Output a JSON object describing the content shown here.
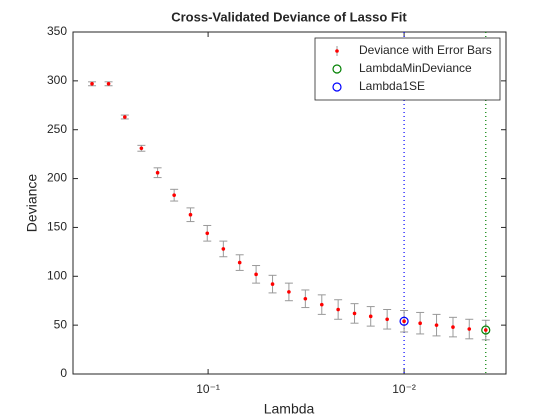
{
  "chart_data": {
    "type": "errorbar",
    "title": "Cross-Validated Deviance of Lasso Fit",
    "xlabel": "Lambda",
    "ylabel": "Deviance",
    "xscale": "log",
    "xlim": [
      0.489,
      0.00302
    ],
    "xticks": [
      {
        "value": 0.1,
        "label": "10⁻¹"
      },
      {
        "value": 0.01,
        "label": "10⁻²"
      }
    ],
    "ylim": [
      0,
      350
    ],
    "yticks": [
      0,
      50,
      100,
      150,
      200,
      250,
      300,
      350
    ],
    "legend": "northeast",
    "x": [
      0.391,
      0.322,
      0.266,
      0.219,
      0.181,
      0.149,
      0.123,
      0.101,
      0.0836,
      0.069,
      0.0569,
      0.0469,
      0.0387,
      0.0319,
      0.0263,
      0.0217,
      0.0179,
      0.0148,
      0.0122,
      0.01,
      0.00828,
      0.00683,
      0.00563,
      0.00465,
      0.00383
    ],
    "series": [
      {
        "name": "Deviance with Error Bars",
        "color": "#ff0000",
        "error_color": "#999999",
        "values": [
          297,
          297,
          263,
          231,
          206,
          183,
          163,
          144,
          128,
          114,
          102,
          92,
          84,
          77,
          71,
          66,
          62,
          59,
          56,
          54,
          52,
          50,
          48,
          46,
          45
        ],
        "errors": [
          2,
          2,
          2,
          3,
          5,
          6,
          7,
          8,
          8,
          8,
          9,
          9,
          9,
          9,
          10,
          10,
          10,
          10,
          10,
          11,
          11,
          11,
          10,
          10,
          10
        ]
      }
    ],
    "markers": [
      {
        "name": "LambdaMinDeviance",
        "color": "#008000",
        "x": 0.00383,
        "y": 45
      },
      {
        "name": "Lambda1SE",
        "color": "#0000ff",
        "x": 0.01,
        "y": 54
      }
    ]
  }
}
